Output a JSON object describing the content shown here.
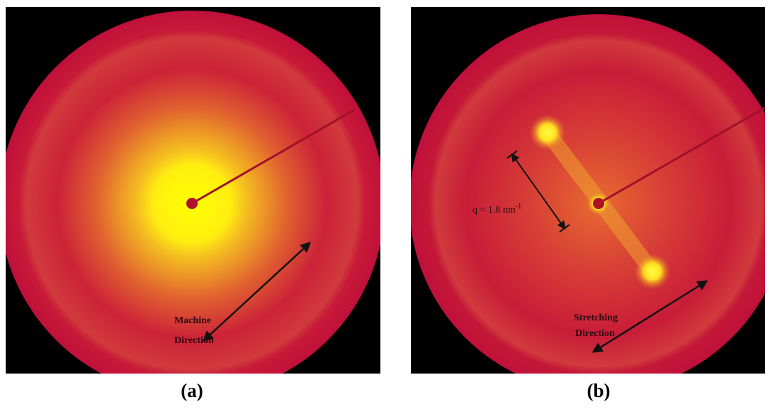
{
  "panels": [
    {
      "label": "(a)",
      "annotation": [
        "Machine",
        "Direction"
      ]
    },
    {
      "label": "(b)",
      "annotation": [
        "Stretching",
        "Direction"
      ],
      "scale": {
        "text": "q = 1.8 nm",
        "superscript": "-1"
      }
    }
  ]
}
